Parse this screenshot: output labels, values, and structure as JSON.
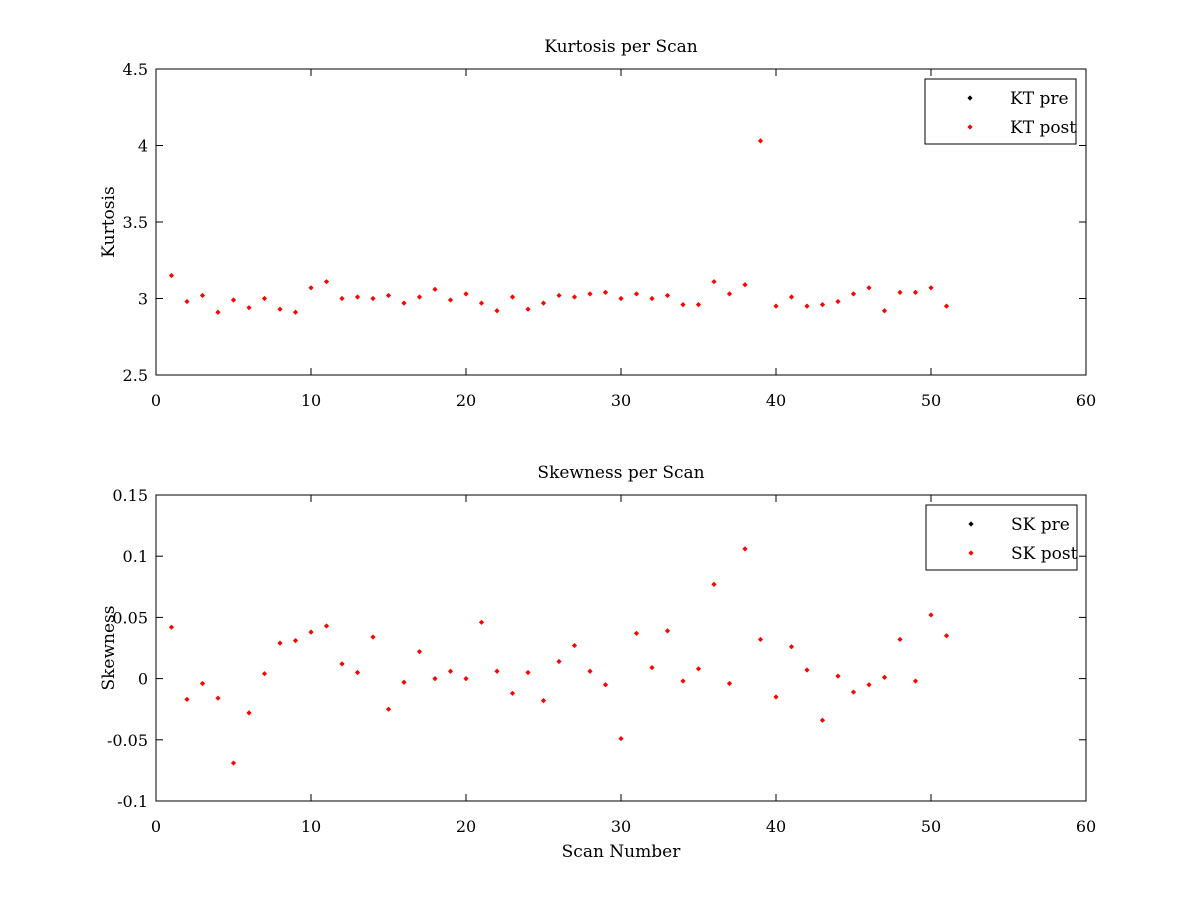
{
  "chart_data": [
    {
      "type": "scatter",
      "title": "Kurtosis per Scan",
      "xlabel": "",
      "ylabel": "Kurtosis",
      "xlim": [
        0,
        60
      ],
      "ylim": [
        2.5,
        4.5
      ],
      "xticks": [
        "0",
        "10",
        "20",
        "30",
        "40",
        "50",
        "60"
      ],
      "yticks": [
        "2.5",
        "3",
        "3.5",
        "4",
        "4.5"
      ],
      "grid": false,
      "legend_position": "top-right",
      "series": [
        {
          "name": "KT pre",
          "color": "#000000",
          "x": [],
          "y": []
        },
        {
          "name": "KT post",
          "color": "#ff0000",
          "x": [
            1,
            2,
            3,
            4,
            5,
            6,
            7,
            8,
            9,
            10,
            11,
            12,
            13,
            14,
            15,
            16,
            17,
            18,
            19,
            20,
            21,
            22,
            23,
            24,
            25,
            26,
            27,
            28,
            29,
            30,
            31,
            32,
            33,
            34,
            35,
            36,
            37,
            38,
            39,
            40,
            41,
            42,
            43,
            44,
            45,
            46,
            47,
            48,
            49,
            50,
            51
          ],
          "y": [
            3.15,
            2.98,
            3.02,
            2.91,
            2.99,
            2.94,
            3.0,
            2.93,
            2.91,
            3.07,
            3.11,
            3.0,
            3.01,
            3.0,
            3.02,
            2.97,
            3.01,
            3.06,
            2.99,
            3.03,
            2.97,
            2.92,
            3.01,
            2.93,
            2.97,
            3.02,
            3.01,
            3.03,
            3.04,
            3.0,
            3.03,
            3.0,
            3.02,
            2.96,
            2.96,
            3.11,
            3.03,
            3.09,
            4.03,
            2.95,
            3.01,
            2.95,
            2.96,
            2.98,
            3.03,
            3.07,
            2.92,
            3.04,
            3.04,
            3.07,
            2.95
          ]
        }
      ]
    },
    {
      "type": "scatter",
      "title": "Skewness per Scan",
      "xlabel": "Scan Number",
      "ylabel": "Skewness",
      "xlim": [
        0,
        60
      ],
      "ylim": [
        -0.1,
        0.15
      ],
      "xticks": [
        "0",
        "10",
        "20",
        "30",
        "40",
        "50",
        "60"
      ],
      "yticks": [
        "-0.1",
        "-0.05",
        "0",
        "0.05",
        "0.1",
        "0.15"
      ],
      "grid": false,
      "legend_position": "top-right",
      "series": [
        {
          "name": "SK pre",
          "color": "#000000",
          "x": [],
          "y": []
        },
        {
          "name": "SK post",
          "color": "#ff0000",
          "x": [
            1,
            2,
            3,
            4,
            5,
            6,
            7,
            8,
            9,
            10,
            11,
            12,
            13,
            14,
            15,
            16,
            17,
            18,
            19,
            20,
            21,
            22,
            23,
            24,
            25,
            26,
            27,
            28,
            29,
            30,
            31,
            32,
            33,
            34,
            35,
            36,
            37,
            38,
            39,
            40,
            41,
            42,
            43,
            44,
            45,
            46,
            47,
            48,
            49,
            50,
            51
          ],
          "y": [
            0.042,
            -0.017,
            -0.004,
            -0.016,
            -0.069,
            -0.028,
            0.004,
            0.029,
            0.031,
            0.038,
            0.043,
            0.012,
            0.005,
            0.034,
            -0.025,
            -0.003,
            0.022,
            0.0,
            0.006,
            0.0,
            0.046,
            0.006,
            -0.012,
            0.005,
            -0.018,
            0.014,
            0.027,
            0.006,
            -0.005,
            -0.049,
            0.037,
            0.009,
            0.039,
            -0.002,
            0.008,
            0.077,
            -0.004,
            0.106,
            0.032,
            -0.015,
            0.026,
            0.007,
            -0.034,
            0.002,
            -0.011,
            -0.005,
            0.001,
            0.032,
            -0.002,
            0.052,
            0.035
          ]
        }
      ]
    }
  ]
}
